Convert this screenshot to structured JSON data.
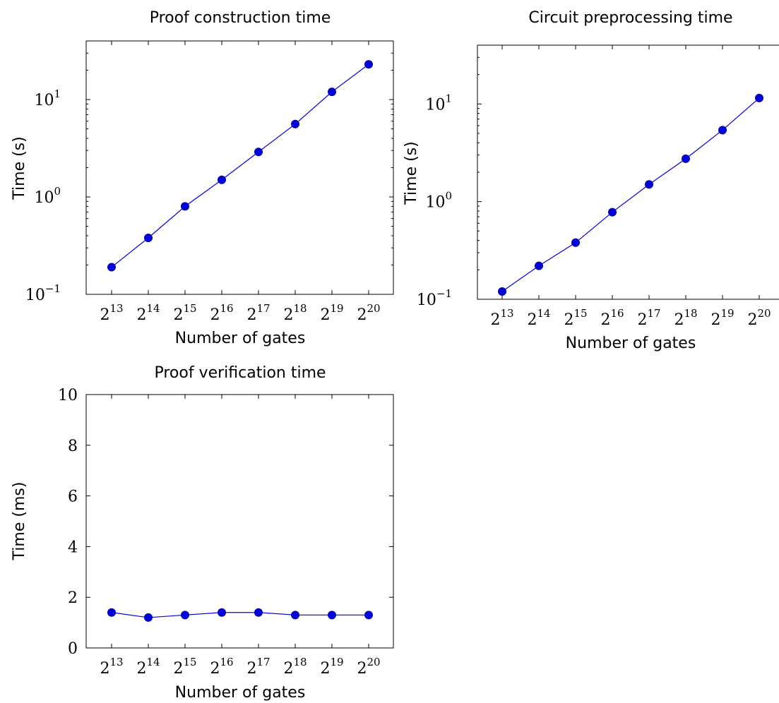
{
  "chart_data": [
    {
      "type": "line",
      "title": "Proof construction time",
      "xlabel": "Number of gates",
      "ylabel": "Time (s)",
      "x_tick_labels": [
        {
          "base": "2",
          "exp": "13"
        },
        {
          "base": "2",
          "exp": "14"
        },
        {
          "base": "2",
          "exp": "15"
        },
        {
          "base": "2",
          "exp": "16"
        },
        {
          "base": "2",
          "exp": "17"
        },
        {
          "base": "2",
          "exp": "18"
        },
        {
          "base": "2",
          "exp": "19"
        },
        {
          "base": "2",
          "exp": "20"
        }
      ],
      "x": [
        8192,
        16384,
        32768,
        65536,
        131072,
        262144,
        524288,
        1048576
      ],
      "y_scale": "log",
      "y_tick_labels": [
        {
          "base": "10",
          "exp": "−1"
        },
        {
          "base": "10",
          "exp": "0"
        },
        {
          "base": "10",
          "exp": "1"
        }
      ],
      "series": [
        {
          "values": [
            0.19,
            0.38,
            0.8,
            1.5,
            2.9,
            5.6,
            12,
            23
          ],
          "color": "#0000e6"
        }
      ],
      "ylim": [
        0.1,
        40
      ],
      "grid": false
    },
    {
      "type": "line",
      "title": "Circuit preprocessing time",
      "xlabel": "Number of gates",
      "ylabel": "Time (s)",
      "x_tick_labels": [
        {
          "base": "2",
          "exp": "13"
        },
        {
          "base": "2",
          "exp": "14"
        },
        {
          "base": "2",
          "exp": "15"
        },
        {
          "base": "2",
          "exp": "16"
        },
        {
          "base": "2",
          "exp": "17"
        },
        {
          "base": "2",
          "exp": "18"
        },
        {
          "base": "2",
          "exp": "19"
        },
        {
          "base": "2",
          "exp": "20"
        }
      ],
      "x": [
        8192,
        16384,
        32768,
        65536,
        131072,
        262144,
        524288,
        1048576
      ],
      "y_scale": "log",
      "y_tick_labels": [
        {
          "base": "10",
          "exp": "−1"
        },
        {
          "base": "10",
          "exp": "0"
        },
        {
          "base": "10",
          "exp": "1"
        }
      ],
      "series": [
        {
          "values": [
            0.12,
            0.22,
            0.38,
            0.78,
            1.5,
            2.75,
            5.4,
            11.5
          ],
          "color": "#0000e6"
        }
      ],
      "ylim": [
        0.1,
        40
      ],
      "grid": false
    },
    {
      "type": "line",
      "title": "Proof verification time",
      "xlabel": "Number of gates",
      "ylabel": "Time (ms)",
      "x_tick_labels": [
        {
          "base": "2",
          "exp": "13"
        },
        {
          "base": "2",
          "exp": "14"
        },
        {
          "base": "2",
          "exp": "15"
        },
        {
          "base": "2",
          "exp": "16"
        },
        {
          "base": "2",
          "exp": "17"
        },
        {
          "base": "2",
          "exp": "18"
        },
        {
          "base": "2",
          "exp": "19"
        },
        {
          "base": "2",
          "exp": "20"
        }
      ],
      "x": [
        8192,
        16384,
        32768,
        65536,
        131072,
        262144,
        524288,
        1048576
      ],
      "y_scale": "linear",
      "y_ticks": [
        0,
        2,
        4,
        6,
        8,
        10
      ],
      "series": [
        {
          "values": [
            1.4,
            1.2,
            1.3,
            1.4,
            1.4,
            1.3,
            1.3,
            1.3
          ],
          "color": "#0000e6"
        }
      ],
      "ylim": [
        0,
        10
      ],
      "grid": false
    }
  ]
}
